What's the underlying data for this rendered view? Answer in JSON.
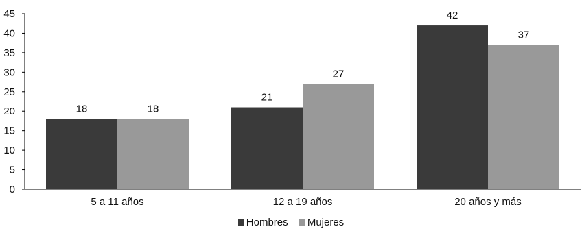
{
  "chart_data": {
    "type": "bar",
    "categories": [
      "5 a 11 años",
      "12 a 19 años",
      "20 años y más"
    ],
    "series": [
      {
        "name": "Hombres",
        "values": [
          18,
          21,
          42
        ],
        "color": "#3a3a3a"
      },
      {
        "name": "Mujeres",
        "values": [
          18,
          27,
          37
        ],
        "color": "#999999"
      }
    ],
    "title": "",
    "xlabel": "",
    "ylabel": "",
    "ylim": [
      0,
      45
    ],
    "yticks": [
      0,
      5,
      10,
      15,
      20,
      25,
      30,
      35,
      40,
      45
    ],
    "grid": false,
    "legend_position": "bottom"
  }
}
